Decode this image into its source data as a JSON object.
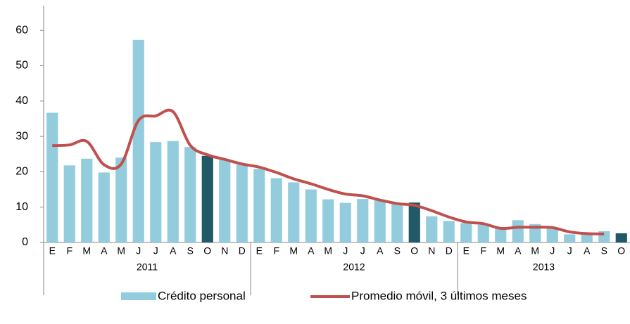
{
  "chart_data": {
    "type": "bar_line",
    "categories": [
      "E",
      "F",
      "M",
      "A",
      "M",
      "J",
      "J",
      "A",
      "S",
      "O",
      "N",
      "D",
      "E",
      "F",
      "M",
      "A",
      "M",
      "J",
      "J",
      "A",
      "S",
      "O",
      "N",
      "D",
      "E",
      "F",
      "M",
      "A",
      "M",
      "J",
      "J",
      "A",
      "S",
      "O"
    ],
    "year_groups": [
      {
        "label": "2011",
        "size": 12
      },
      {
        "label": "2012",
        "size": 12
      },
      {
        "label": "2013",
        "size": 10
      }
    ],
    "series": [
      {
        "name": "Crédito personal",
        "type": "bar",
        "color": "#93cddd",
        "colors": [
          "#93cddd",
          "#93cddd",
          "#93cddd",
          "#93cddd",
          "#93cddd",
          "#93cddd",
          "#93cddd",
          "#93cddd",
          "#93cddd",
          "#215967",
          "#93cddd",
          "#93cddd",
          "#93cddd",
          "#93cddd",
          "#93cddd",
          "#93cddd",
          "#93cddd",
          "#93cddd",
          "#93cddd",
          "#93cddd",
          "#93cddd",
          "#215967",
          "#93cddd",
          "#93cddd",
          "#93cddd",
          "#93cddd",
          "#93cddd",
          "#93cddd",
          "#93cddd",
          "#93cddd",
          "#93cddd",
          "#93cddd",
          "#93cddd",
          "#215967"
        ],
        "values": [
          36.7,
          21.8,
          23.7,
          19.8,
          24,
          57.3,
          28.4,
          28.7,
          27,
          24.5,
          23.5,
          22,
          20.8,
          18.2,
          17,
          15,
          12.2,
          11.2,
          12.3,
          12,
          10.8,
          11.3,
          7.4,
          6.1,
          5.5,
          5,
          4,
          6.3,
          5.2,
          4.2,
          2.3,
          2.5,
          3.2,
          2.6
        ]
      },
      {
        "name": "Promedio móvil, 3 últimos meses",
        "type": "line",
        "color": "#c0504d",
        "values": [
          27.4,
          27.6,
          28.6,
          22,
          22.2,
          34.5,
          35.8,
          37,
          27.5,
          24.8,
          23.5,
          22.2,
          21.3,
          19.8,
          18,
          16.6,
          15,
          13.7,
          13.2,
          12,
          11,
          10.5,
          9,
          7.2,
          5.8,
          5.3,
          4,
          4.3,
          4.3,
          4.2,
          3,
          2.5,
          2.4,
          null
        ]
      }
    ],
    "ylim": [
      0,
      67
    ],
    "yticks": [
      0,
      10,
      20,
      30,
      40,
      50,
      60
    ]
  }
}
